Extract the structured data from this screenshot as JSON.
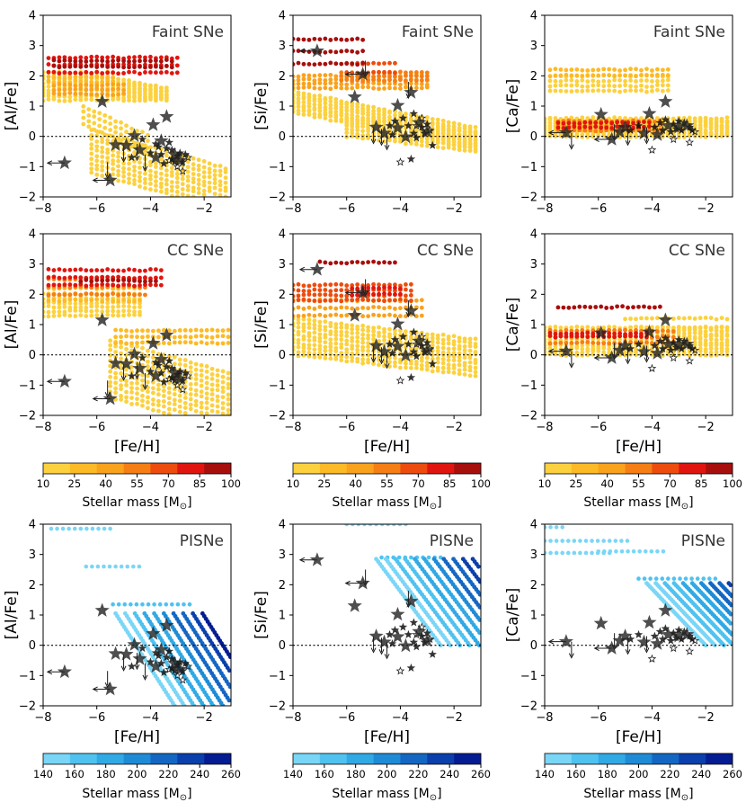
{
  "chart_data": {
    "type": "scatter",
    "grid": false,
    "xlim": [
      -8,
      -1
    ],
    "ylim": [
      -2,
      4
    ],
    "xticks": [
      -8,
      -6,
      -4,
      -2
    ],
    "yticks": [
      -2,
      -1,
      0,
      1,
      2,
      3,
      4
    ],
    "xlabel": "[Fe/H]",
    "reference_line": 0,
    "colorbars": [
      {
        "label": "Stellar mass [M",
        "label_symbol": "⊙",
        "label_close": "]",
        "ticks": [
          10,
          25,
          40,
          55,
          70,
          85,
          100
        ],
        "colors": [
          "#fcd13f",
          "#fcba26",
          "#f9a21d",
          "#f57e15",
          "#ed4c0e",
          "#e1150f",
          "#a70f0d"
        ]
      },
      {
        "label": "Stellar mass [M",
        "label_symbol": "⊙",
        "label_close": "]",
        "ticks": [
          140,
          160,
          180,
          200,
          220,
          240,
          260
        ],
        "colors": [
          "#7ad6f6",
          "#4fc2f0",
          "#31a9e4",
          "#1f8bd6",
          "#1466c3",
          "#0b3fac",
          "#041c92"
        ]
      }
    ],
    "panels": [
      {
        "row": 0,
        "col": 0,
        "title": "Faint SNe",
        "ylabel": "[Al/Fe]",
        "element": "Al",
        "model": "faint",
        "colorbar": 0,
        "show_xlabel": false
      },
      {
        "row": 0,
        "col": 1,
        "title": "Faint SNe",
        "ylabel": "[Si/Fe]",
        "element": "Si",
        "model": "faint",
        "colorbar": 0,
        "show_xlabel": false
      },
      {
        "row": 0,
        "col": 2,
        "title": "Faint SNe",
        "ylabel": "[Ca/Fe]",
        "element": "Ca",
        "model": "faint",
        "colorbar": 0,
        "show_xlabel": false
      },
      {
        "row": 1,
        "col": 0,
        "title": "CC SNe",
        "ylabel": "[Al/Fe]",
        "element": "Al",
        "model": "cc",
        "colorbar": 0,
        "show_xlabel": true
      },
      {
        "row": 1,
        "col": 1,
        "title": "CC SNe",
        "ylabel": "[Si/Fe]",
        "element": "Si",
        "model": "cc",
        "colorbar": 0,
        "show_xlabel": true
      },
      {
        "row": 1,
        "col": 2,
        "title": "CC SNe",
        "ylabel": "[Ca/Fe]",
        "element": "Ca",
        "model": "cc",
        "colorbar": 0,
        "show_xlabel": true
      },
      {
        "row": 2,
        "col": 0,
        "title": "PISNe",
        "ylabel": "[Al/Fe]",
        "element": "Al",
        "model": "pisn",
        "colorbar": 1,
        "show_xlabel": true
      },
      {
        "row": 2,
        "col": 1,
        "title": "PISNe",
        "ylabel": "[Si/Fe]",
        "element": "Si",
        "model": "pisn",
        "colorbar": 1,
        "show_xlabel": true
      },
      {
        "row": 2,
        "col": 2,
        "title": "PISNe",
        "ylabel": "[Ca/Fe]",
        "element": "Ca",
        "model": "pisn",
        "colorbar": 1,
        "show_xlabel": true
      }
    ],
    "observed_stars": {
      "Al": {
        "large": [
          [
            -7.2,
            -0.88
          ],
          [
            -5.8,
            1.15
          ],
          [
            -5.5,
            -1.45
          ],
          [
            -5.3,
            -0.28
          ],
          [
            -4.6,
            0.02
          ],
          [
            -4.4,
            -0.45
          ],
          [
            -3.9,
            0.38
          ],
          [
            -3.6,
            -0.15
          ],
          [
            -3.4,
            0.65
          ],
          [
            -3.1,
            -0.6
          ],
          [
            -2.9,
            -0.8
          ],
          [
            -3.8,
            -0.7
          ],
          [
            -4.9,
            -0.3
          ]
        ],
        "small": [
          [
            -4.7,
            -0.7
          ],
          [
            -4.0,
            -0.55
          ],
          [
            -3.7,
            -0.35
          ],
          [
            -3.5,
            -0.9
          ],
          [
            -3.3,
            -0.2
          ],
          [
            -3.2,
            -0.75
          ],
          [
            -3.0,
            -0.65
          ],
          [
            -2.9,
            -0.55
          ],
          [
            -2.8,
            -0.85
          ],
          [
            -2.7,
            -0.6
          ],
          [
            -3.6,
            -0.6
          ],
          [
            -3.4,
            -0.4
          ],
          [
            -3.1,
            -0.85
          ],
          [
            -4.3,
            -0.1
          ],
          [
            -3.8,
            -0.25
          ],
          [
            -3.2,
            -0.45
          ]
        ],
        "open": [
          [
            -2.8,
            -1.15
          ],
          [
            -2.6,
            -0.7
          ],
          [
            -3.0,
            -1.0
          ],
          [
            -3.3,
            -0.8
          ]
        ],
        "upper_limits": [
          [
            -5.6,
            -0.85
          ],
          [
            -5.0,
            -0.3
          ],
          [
            -4.5,
            -0.25
          ],
          [
            -4.2,
            -0.6
          ]
        ],
        "left_arrows": [
          [
            -5.5,
            -1.45
          ],
          [
            -7.2,
            -0.88
          ]
        ]
      },
      "Si": {
        "large": [
          [
            -7.1,
            2.82
          ],
          [
            -5.7,
            1.3
          ],
          [
            -5.4,
            2.05
          ],
          [
            -4.9,
            0.3
          ],
          [
            -4.1,
            1.02
          ],
          [
            -4.1,
            0.28
          ],
          [
            -3.6,
            1.45
          ],
          [
            -3.8,
            -0.02
          ],
          [
            -4.6,
            0.1
          ],
          [
            -3.3,
            0.45
          ],
          [
            -3.0,
            0.15
          ]
        ],
        "small": [
          [
            -4.4,
            0.35
          ],
          [
            -4.3,
            0.05
          ],
          [
            -3.9,
            0.6
          ],
          [
            -3.7,
            0.35
          ],
          [
            -3.5,
            0.1
          ],
          [
            -3.4,
            -0.05
          ],
          [
            -3.2,
            0.3
          ],
          [
            -3.1,
            0.1
          ],
          [
            -2.8,
            -0.3
          ],
          [
            -3.6,
            -0.75
          ],
          [
            -4.2,
            0.5
          ],
          [
            -3.0,
            0.4
          ],
          [
            -3.5,
            0.75
          ]
        ],
        "open": [
          [
            -4.0,
            -0.85
          ],
          [
            -3.4,
            0.35
          ],
          [
            -3.2,
            0.6
          ],
          [
            -2.9,
            0.2
          ]
        ],
        "upper_limits": [
          [
            -5.0,
            0.3
          ],
          [
            -4.7,
            0.25
          ],
          [
            -4.5,
            0.1
          ],
          [
            -3.7,
            1.8
          ],
          [
            -5.3,
            2.5
          ]
        ],
        "left_arrows": [
          [
            -5.4,
            2.05
          ],
          [
            -7.1,
            2.82
          ]
        ]
      },
      "Ca": {
        "large": [
          [
            -7.2,
            0.12
          ],
          [
            -5.9,
            0.72
          ],
          [
            -5.5,
            -0.1
          ],
          [
            -5.0,
            0.3
          ],
          [
            -4.3,
            0.1
          ],
          [
            -4.1,
            0.75
          ],
          [
            -3.5,
            1.15
          ],
          [
            -3.4,
            0.35
          ],
          [
            -3.8,
            0.05
          ],
          [
            -3.0,
            0.3
          ],
          [
            -2.7,
            0.35
          ],
          [
            -5.2,
            0.15
          ]
        ],
        "small": [
          [
            -4.8,
            0.2
          ],
          [
            -4.5,
            0.35
          ],
          [
            -3.9,
            0.3
          ],
          [
            -3.7,
            0.45
          ],
          [
            -3.6,
            0.2
          ],
          [
            -3.3,
            0.15
          ],
          [
            -3.2,
            0.4
          ],
          [
            -3.1,
            0.25
          ],
          [
            -2.9,
            0.2
          ],
          [
            -2.8,
            0.45
          ],
          [
            -2.6,
            0.3
          ],
          [
            -2.5,
            0.2
          ],
          [
            -3.5,
            0.55
          ],
          [
            -3.0,
            0.5
          ]
        ],
        "open": [
          [
            -4.0,
            -0.45
          ],
          [
            -3.2,
            -0.1
          ],
          [
            -2.6,
            -0.2
          ],
          [
            -2.4,
            0.15
          ]
        ],
        "upper_limits": [
          [
            -7.0,
            0.12
          ],
          [
            -5.4,
            0.4
          ],
          [
            -4.9,
            0.25
          ],
          [
            -4.2,
            0.3
          ]
        ],
        "left_arrows": [
          [
            -5.5,
            -0.1
          ],
          [
            -7.2,
            0.12
          ]
        ]
      }
    }
  }
}
